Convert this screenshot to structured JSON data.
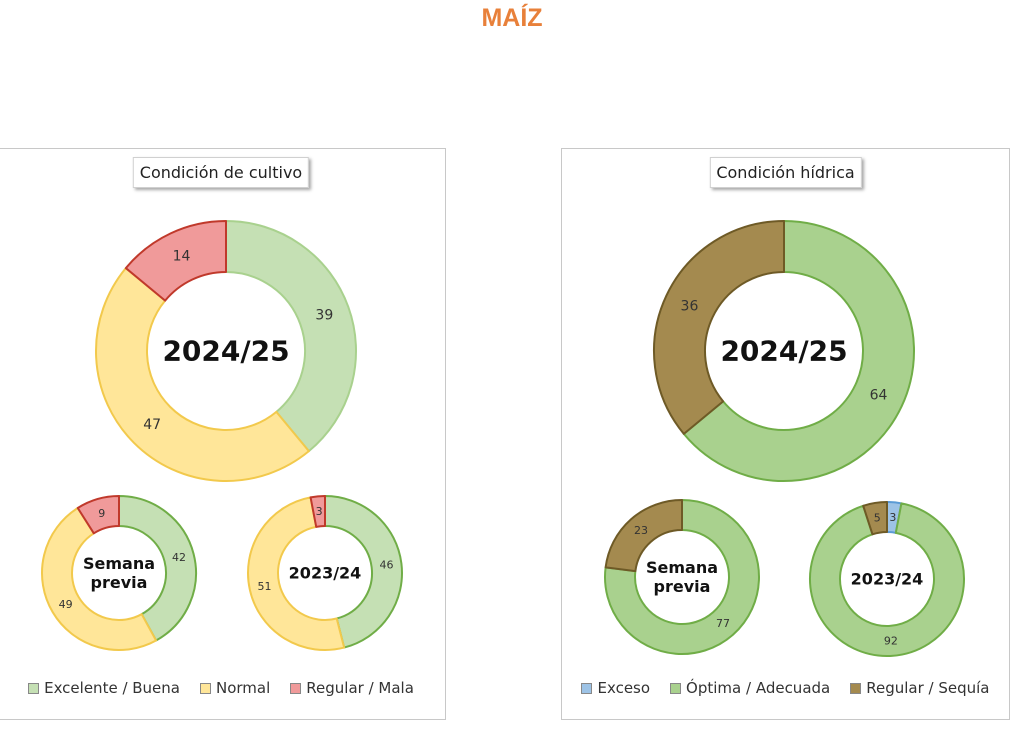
{
  "title": "MAÍZ",
  "chart_data": [
    {
      "type": "pie",
      "title": "Condición de cultivo",
      "legend": {
        "position": "bottom",
        "items": [
          {
            "label": "Excelente / Buena",
            "color": "#c5e0b4"
          },
          {
            "label": "Normal",
            "color": "#ffe699"
          },
          {
            "label": "Regular / Mala",
            "color": "#f09a9a"
          }
        ]
      },
      "donuts": [
        {
          "center_label": "2024/25",
          "size": "large",
          "slices": [
            {
              "category": "Excelente / Buena",
              "value": 39,
              "color": "#c5e0b4",
              "stroke": "#a9d18e"
            },
            {
              "category": "Normal",
              "value": 47,
              "color": "#ffe699",
              "stroke": "#f2c94c"
            },
            {
              "category": "Regular / Mala",
              "value": 14,
              "color": "#f09a9a",
              "stroke": "#c0392b"
            }
          ]
        },
        {
          "center_label": "Semana previa",
          "size": "small",
          "slices": [
            {
              "category": "Excelente / Buena",
              "value": 42,
              "color": "#c5e0b4",
              "stroke": "#70ad47"
            },
            {
              "category": "Normal",
              "value": 49,
              "color": "#ffe699",
              "stroke": "#f2c94c"
            },
            {
              "category": "Regular / Mala",
              "value": 9,
              "color": "#f09a9a",
              "stroke": "#c0392b"
            }
          ]
        },
        {
          "center_label": "2023/24",
          "size": "small",
          "slices": [
            {
              "category": "Excelente / Buena",
              "value": 46,
              "color": "#c5e0b4",
              "stroke": "#70ad47"
            },
            {
              "category": "Normal",
              "value": 51,
              "color": "#ffe699",
              "stroke": "#f2c94c"
            },
            {
              "category": "Regular / Mala",
              "value": 3,
              "color": "#f09a9a",
              "stroke": "#c0392b"
            }
          ]
        }
      ]
    },
    {
      "type": "pie",
      "title": "Condición hídrica",
      "legend": {
        "position": "bottom",
        "items": [
          {
            "label": "Exceso",
            "color": "#9dc3e6"
          },
          {
            "label": "Óptima / Adecuada",
            "color": "#a9d18e"
          },
          {
            "label": "Regular / Sequía",
            "color": "#a48a4f"
          }
        ]
      },
      "donuts": [
        {
          "center_label": "2024/25",
          "size": "large",
          "slices": [
            {
              "category": "Exceso",
              "value": 0,
              "color": "#9dc3e6",
              "stroke": "#5b9bd5"
            },
            {
              "category": "Óptima / Adecuada",
              "value": 64,
              "color": "#a9d18e",
              "stroke": "#70ad47"
            },
            {
              "category": "Regular / Sequía",
              "value": 36,
              "color": "#a48a4f",
              "stroke": "#6e5a26"
            }
          ]
        },
        {
          "center_label": "Semana previa",
          "size": "small",
          "slices": [
            {
              "category": "Exceso",
              "value": 0,
              "color": "#9dc3e6",
              "stroke": "#5b9bd5"
            },
            {
              "category": "Óptima / Adecuada",
              "value": 77,
              "color": "#a9d18e",
              "stroke": "#70ad47"
            },
            {
              "category": "Regular / Sequía",
              "value": 23,
              "color": "#a48a4f",
              "stroke": "#6e5a26"
            }
          ]
        },
        {
          "center_label": "2023/24",
          "size": "small",
          "slices": [
            {
              "category": "Exceso",
              "value": 3,
              "color": "#9dc3e6",
              "stroke": "#5b9bd5"
            },
            {
              "category": "Óptima / Adecuada",
              "value": 92,
              "color": "#a9d18e",
              "stroke": "#70ad47"
            },
            {
              "category": "Regular / Sequía",
              "value": 5,
              "color": "#a48a4f",
              "stroke": "#6e5a26"
            }
          ]
        }
      ]
    }
  ]
}
